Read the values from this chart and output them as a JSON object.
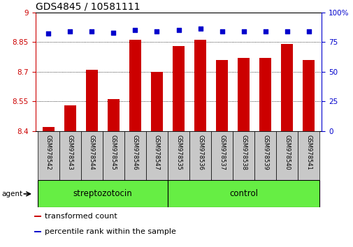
{
  "title": "GDS4845 / 10581111",
  "samples": [
    "GSM978542",
    "GSM978543",
    "GSM978544",
    "GSM978545",
    "GSM978546",
    "GSM978547",
    "GSM978535",
    "GSM978536",
    "GSM978537",
    "GSM978538",
    "GSM978539",
    "GSM978540",
    "GSM978541"
  ],
  "bar_values": [
    8.42,
    8.53,
    8.71,
    8.56,
    8.86,
    8.7,
    8.83,
    8.86,
    8.76,
    8.77,
    8.77,
    8.84,
    8.76
  ],
  "percentile_values": [
    82,
    84,
    84,
    83,
    85,
    84,
    85,
    86,
    84,
    84,
    84,
    84,
    84
  ],
  "groups": [
    {
      "label": "streptozotocin",
      "start": 0,
      "end": 6
    },
    {
      "label": "control",
      "start": 6,
      "end": 13
    }
  ],
  "bar_color": "#cc0000",
  "percentile_color": "#0000cc",
  "group_color": "#66ee44",
  "tick_label_bg": "#c8c8c8",
  "ylim_left": [
    8.4,
    9.0
  ],
  "ylim_right": [
    0,
    100
  ],
  "yticks_left": [
    8.4,
    8.55,
    8.7,
    8.85,
    9.0
  ],
  "yticks_right": [
    0,
    25,
    50,
    75,
    100
  ],
  "ylabel_left_color": "#cc0000",
  "ylabel_right_color": "#0000cc",
  "legend": [
    {
      "label": "transformed count",
      "color": "#cc0000"
    },
    {
      "label": "percentile rank within the sample",
      "color": "#0000cc"
    }
  ],
  "agent_label": "agent",
  "bar_width": 0.55,
  "title_fontsize": 10,
  "tick_fontsize": 7.5,
  "group_fontsize": 8.5,
  "legend_fontsize": 8
}
